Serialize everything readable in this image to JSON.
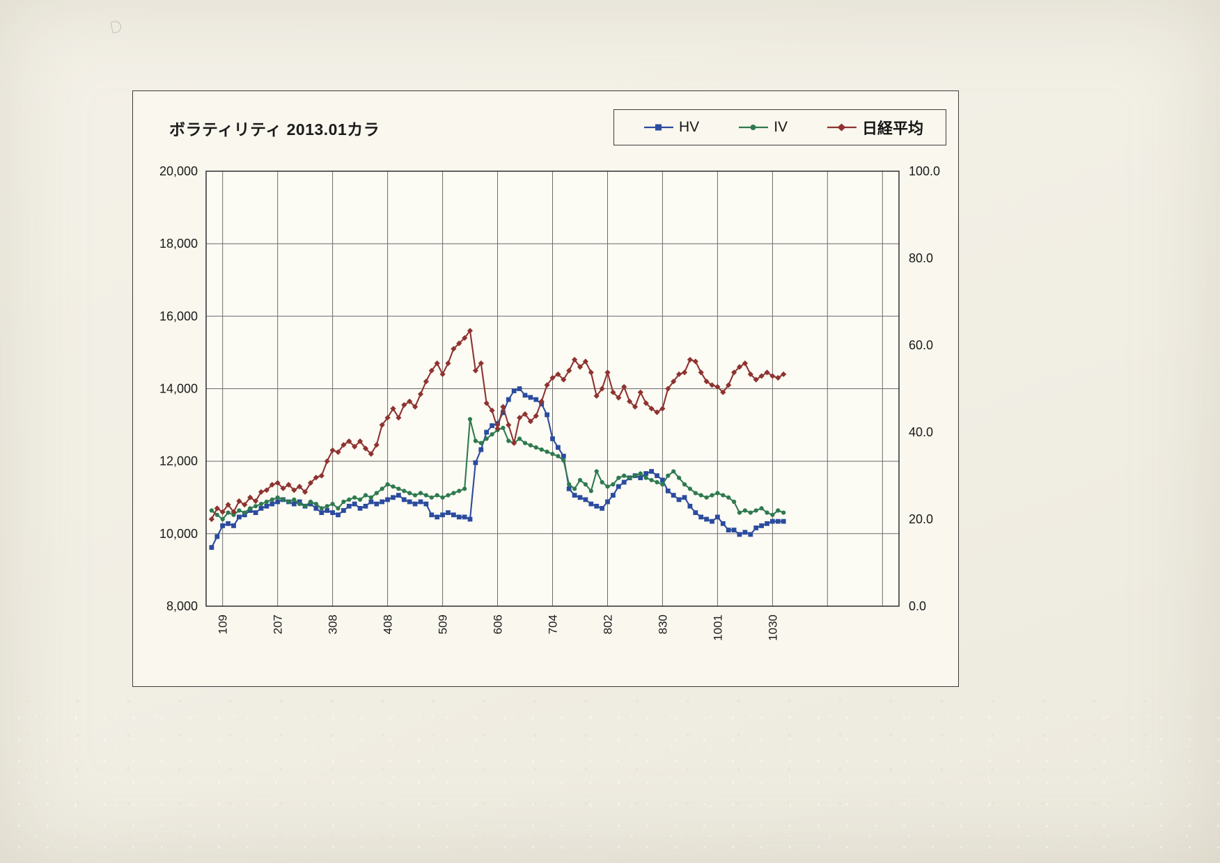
{
  "chart_data": {
    "type": "line",
    "title": "ボラティリティ 2013.01カラ",
    "legend_position": "top-right",
    "grid": true,
    "plot_bg": "#fcfbf4",
    "grid_color": "#6b6b6b",
    "border_color": "#2e2e2e",
    "x_axis": {
      "note": "2013 trading-day index; tick labels are dates MMDD",
      "range": [
        -2,
        250
      ],
      "gridline_positions": [
        4,
        24,
        44,
        64,
        84,
        104,
        124,
        144,
        164,
        184,
        204,
        224,
        244
      ],
      "tick_labels": [
        "109",
        "207",
        "308",
        "408",
        "509",
        "606",
        "704",
        "802",
        "830",
        "1001",
        "1030",
        "",
        ""
      ]
    },
    "left_axis": {
      "min": 8000,
      "max": 20000,
      "step": 2000,
      "series": "日経平均",
      "ticks": {
        "values": [
          8000,
          10000,
          12000,
          14000,
          16000,
          18000,
          20000
        ],
        "labels": [
          "8,000",
          "10,000",
          "12,000",
          "14,000",
          "16,000",
          "18,000",
          "20,000"
        ]
      }
    },
    "right_axis": {
      "min": 0,
      "max": 100,
      "step": 20,
      "series": "HV, IV",
      "ticks": {
        "values": [
          0,
          20,
          40,
          60,
          80,
          100
        ],
        "labels": [
          "0.0",
          "20.0",
          "40.0",
          "60.0",
          "80.0",
          "100.0"
        ]
      }
    },
    "x": {
      "start": 0,
      "step": 2,
      "count": 105
    },
    "series": [
      {
        "id": "hv",
        "name": "HV",
        "axis": "right",
        "marker": "square",
        "color": "#2b4b9e",
        "values": [
          13.5,
          16,
          18.5,
          19,
          18.5,
          20.5,
          21,
          22,
          21.5,
          22.5,
          23,
          23.5,
          24,
          24.5,
          24,
          23.5,
          24,
          23,
          23.5,
          22.5,
          21.5,
          22,
          21.5,
          21,
          22,
          23,
          23.5,
          22.5,
          23,
          24,
          23.5,
          24,
          24.5,
          25,
          25.5,
          24.5,
          24,
          23.5,
          24,
          23.5,
          21,
          20.5,
          21,
          21.5,
          21,
          20.5,
          20.5,
          20,
          33,
          36,
          40,
          41.5,
          42,
          44.5,
          47.5,
          49.5,
          50,
          48.5,
          48,
          47.5,
          46.5,
          44,
          38.5,
          36.5,
          34.5,
          27,
          25.5,
          25,
          24.5,
          23.5,
          23,
          22.5,
          24,
          25.5,
          27.5,
          28.5,
          29.5,
          30,
          29.5,
          30.5,
          31,
          30,
          29,
          26.5,
          25.5,
          24.5,
          25,
          23,
          21.5,
          20.5,
          20,
          19.5,
          20.5,
          19,
          17.5,
          17.5,
          16.5,
          17,
          16.5,
          18,
          18.5,
          19,
          19.5,
          19.5,
          19.5
        ]
      },
      {
        "id": "iv",
        "name": "IV",
        "axis": "right",
        "marker": "circle",
        "color": "#2e7a4e",
        "values": [
          22,
          21,
          20,
          21.5,
          21,
          22,
          21.5,
          22.5,
          23,
          23.5,
          24,
          24.5,
          25,
          24.5,
          24,
          24.5,
          23.5,
          23,
          24,
          23.5,
          22.5,
          23,
          23.5,
          22.5,
          24,
          24.5,
          25,
          24.5,
          25.5,
          25,
          26,
          27,
          28,
          27.5,
          27,
          26.5,
          26,
          25.5,
          26,
          25.5,
          25,
          25.5,
          25,
          25.5,
          26,
          26.5,
          27,
          43,
          38,
          37.5,
          38.5,
          39.5,
          40.5,
          41,
          38,
          37.5,
          38.5,
          37.5,
          37,
          36.5,
          36,
          35.5,
          35,
          34.5,
          33.5,
          28,
          27,
          29,
          28,
          26.5,
          31,
          28.5,
          27.5,
          28,
          29.5,
          30,
          29.5,
          30,
          30.5,
          29.5,
          29,
          28.5,
          28,
          30,
          31,
          29.5,
          28,
          27,
          26,
          25.5,
          25,
          25.5,
          26,
          25.5,
          25,
          24,
          21.5,
          22,
          21.5,
          22,
          22.5,
          21.5,
          21,
          22,
          21.5
        ]
      },
      {
        "id": "nikkei",
        "name": "日経平均",
        "axis": "left",
        "marker": "diamond",
        "color": "#8e3330",
        "values": [
          10400,
          10700,
          10600,
          10800,
          10600,
          10900,
          10800,
          11000,
          10900,
          11150,
          11200,
          11350,
          11400,
          11250,
          11350,
          11200,
          11300,
          11150,
          11400,
          11550,
          11600,
          12000,
          12300,
          12250,
          12450,
          12550,
          12400,
          12550,
          12350,
          12200,
          12450,
          13000,
          13200,
          13450,
          13200,
          13550,
          13650,
          13500,
          13850,
          14200,
          14500,
          14700,
          14400,
          14700,
          15100,
          15250,
          15400,
          15600,
          14500,
          14700,
          13600,
          13400,
          12900,
          13500,
          13000,
          12500,
          13200,
          13300,
          13100,
          13250,
          13650,
          14100,
          14300,
          14400,
          14250,
          14500,
          14800,
          14600,
          14750,
          14450,
          13800,
          14000,
          14450,
          13900,
          13750,
          14050,
          13650,
          13500,
          13900,
          13600,
          13450,
          13350,
          13450,
          14000,
          14200,
          14400,
          14450,
          14800,
          14750,
          14450,
          14200,
          14100,
          14050,
          13900,
          14100,
          14450,
          14600,
          14700,
          14400,
          14250,
          14350,
          14450,
          14350,
          14300,
          14400
        ]
      }
    ]
  }
}
